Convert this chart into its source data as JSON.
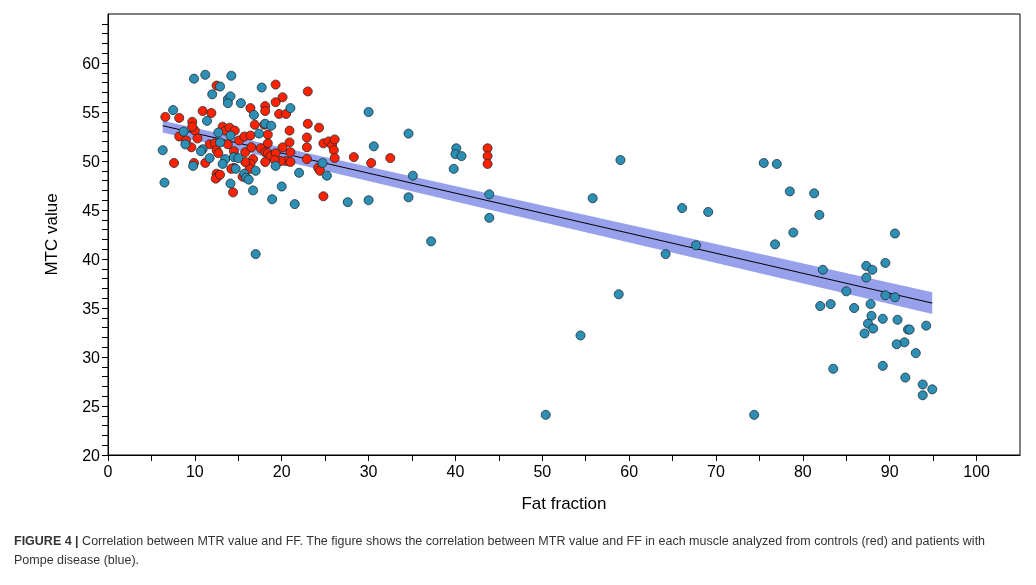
{
  "chart_data": {
    "type": "scatter",
    "xlabel": "Fat fraction",
    "ylabel": "MTC value",
    "xlim": [
      0,
      105
    ],
    "ylim": [
      20,
      65
    ],
    "xticks": [
      0,
      {
        "value": 5,
        "label": null
      },
      10,
      {
        "value": 15,
        "label": null
      },
      20,
      {
        "value": 25,
        "label": null
      },
      30,
      {
        "value": 35,
        "label": null
      },
      40,
      {
        "value": 45,
        "label": null
      },
      50,
      {
        "value": 55,
        "label": null
      },
      60,
      {
        "value": 65,
        "label": null
      },
      70,
      {
        "value": 75,
        "label": null
      },
      80,
      {
        "value": 85,
        "label": null
      },
      90,
      {
        "value": 95,
        "label": null
      },
      100
    ],
    "yticks": [
      20,
      {
        "value": 21,
        "label": null
      },
      {
        "value": 22,
        "label": null
      },
      {
        "value": 23,
        "label": null
      },
      {
        "value": 24,
        "label": null
      },
      25,
      {
        "value": 26,
        "label": null
      },
      {
        "value": 27,
        "label": null
      },
      {
        "value": 28,
        "label": null
      },
      {
        "value": 29,
        "label": null
      },
      30,
      {
        "value": 31,
        "label": null
      },
      {
        "value": 32,
        "label": null
      },
      {
        "value": 33,
        "label": null
      },
      {
        "value": 34,
        "label": null
      },
      35,
      {
        "value": 36,
        "label": null
      },
      {
        "value": 37,
        "label": null
      },
      {
        "value": 38,
        "label": null
      },
      {
        "value": 39,
        "label": null
      },
      40,
      {
        "value": 41,
        "label": null
      },
      {
        "value": 42,
        "label": null
      },
      {
        "value": 43,
        "label": null
      },
      {
        "value": 44,
        "label": null
      },
      45,
      {
        "value": 46,
        "label": null
      },
      {
        "value": 47,
        "label": null
      },
      {
        "value": 48,
        "label": null
      },
      {
        "value": 49,
        "label": null
      },
      50,
      {
        "value": 51,
        "label": null
      },
      {
        "value": 52,
        "label": null
      },
      {
        "value": 53,
        "label": null
      },
      {
        "value": 54,
        "label": null
      },
      55,
      {
        "value": 56,
        "label": null
      },
      {
        "value": 57,
        "label": null
      },
      {
        "value": 58,
        "label": null
      },
      {
        "value": 59,
        "label": null
      },
      60,
      {
        "value": 61,
        "label": null
      },
      {
        "value": 62,
        "label": null
      },
      {
        "value": 63,
        "label": null
      },
      {
        "value": 64,
        "label": null
      }
    ],
    "grid": false,
    "marker": "circle",
    "annotations": [
      "FIGURE 4 | Correlation between MTR value and FF. The figure shows the correlation between MTR value and FF in each muscle analyzed from controls (red) and patients with Pompe disease (blue)."
    ],
    "series": [
      {
        "type": "line",
        "color": "#000000",
        "marker": "none",
        "x": [
          6.3,
          94.9
        ],
        "values": [
          53.6,
          35.5
        ],
        "lower": [
          52.9,
          34.4
        ],
        "upper": [
          54.1,
          36.6
        ]
      },
      {
        "color": "#ff2200",
        "x": [
          6.6,
          8.2,
          10.9,
          11.9,
          12.5,
          16.4,
          18.1,
          19.3,
          20.1,
          19.3,
          18.1,
          19.7,
          20.5,
          23.0,
          16.9,
          18.0,
          23.0,
          24.3,
          9.7,
          10.0,
          9.7,
          8.2,
          9.0,
          10.3,
          9.6,
          7.6,
          9.9,
          11.2,
          13.2,
          13.5,
          14.0,
          14.6,
          15.1,
          15.7,
          16.4,
          18.4,
          18.4,
          20.9,
          20.9,
          22.9,
          22.9,
          22.9,
          24.2,
          24.4,
          24.8,
          24.8,
          25.4,
          25.8,
          26.1,
          26.0,
          26.1,
          28.3,
          30.3,
          32.5,
          43.7,
          43.7,
          43.7,
          11.7,
          12.3,
          12.5,
          12.7,
          13.8,
          14.5,
          15.8,
          16.5,
          17.6,
          18.1,
          18.4,
          18.7,
          19.3,
          20.1,
          20.5,
          19.9,
          19.2,
          18.1,
          16.7,
          16.4,
          16.3,
          14.5,
          14.2,
          12.5,
          12.6,
          12.4,
          12.9,
          15.5,
          14.4,
          15.8,
          21.0,
          21.0
        ],
        "values": [
          54.5,
          54.4,
          55.1,
          54.9,
          57.7,
          55.4,
          55.6,
          57.8,
          56.5,
          56.0,
          55.1,
          54.8,
          54.8,
          57.1,
          53.7,
          53.7,
          53.8,
          53.4,
          54.0,
          53.1,
          53.5,
          52.5,
          52.1,
          52.3,
          51.4,
          49.8,
          49.8,
          49.8,
          53.5,
          53.1,
          53.4,
          53.1,
          52.1,
          52.5,
          52.6,
          52.7,
          51.8,
          53.1,
          51.9,
          52.4,
          51.4,
          50.2,
          49.3,
          49.0,
          46.4,
          51.8,
          52.0,
          51.6,
          52.2,
          51.1,
          50.3,
          50.4,
          49.8,
          50.3,
          51.3,
          50.5,
          49.7,
          51.7,
          51.8,
          51.1,
          50.8,
          51.7,
          51.0,
          50.9,
          51.4,
          51.3,
          50.9,
          50.8,
          50.5,
          50.8,
          51.4,
          50.0,
          50.0,
          50.1,
          49.9,
          50.2,
          49.7,
          49.2,
          49.3,
          49.2,
          48.7,
          48.4,
          48.2,
          48.6,
          48.4,
          46.8,
          49.9,
          50.9,
          49.9
        ]
      },
      {
        "color": "#2e8fb5",
        "x": [
          9.9,
          11.2,
          14.2,
          12.9,
          12.0,
          13.8,
          14.1,
          13.8,
          15.3,
          17.7,
          21.0,
          7.5,
          11.4,
          16.8,
          8.7,
          12.7,
          14.1,
          17.4,
          18.1,
          18.8,
          12.9,
          8.9,
          6.3,
          10.9,
          10.7,
          13.5,
          14.5,
          15.0,
          11.7,
          13.2,
          9.8,
          14.7,
          17.0,
          19.3,
          22.0,
          24.7,
          25.2,
          15.7,
          15.9,
          16.2,
          14.1,
          6.5,
          16.7,
          20.0,
          18.9,
          21.5,
          27.6,
          30.0,
          30.0,
          30.6,
          17.0,
          34.6,
          40.1,
          40.0,
          40.7,
          39.8,
          35.1,
          34.6,
          37.2,
          43.9,
          43.9,
          59.0,
          55.8,
          66.1,
          67.7,
          64.2,
          58.8,
          54.4,
          50.4,
          74.4,
          75.5,
          77.0,
          78.5,
          81.3,
          69.1,
          81.9,
          78.9,
          90.6,
          76.8,
          82.3,
          87.3,
          88.0,
          89.5,
          87.3,
          85.0,
          89.5,
          90.6,
          82.0,
          83.2,
          85.9,
          87.8,
          87.9,
          89.2,
          90.9,
          87.5,
          88.1,
          87.1,
          92.1,
          92.3,
          94.2,
          91.7,
          90.8,
          93.0,
          89.2,
          83.5,
          91.8,
          93.8,
          94.9,
          93.8
        ],
        "values": [
          58.4,
          58.8,
          58.7,
          57.6,
          56.8,
          56.3,
          56.6,
          55.9,
          55.9,
          57.5,
          55.4,
          55.2,
          54.1,
          54.7,
          53.0,
          52.9,
          52.6,
          52.8,
          53.8,
          53.6,
          51.9,
          51.7,
          51.1,
          51.2,
          51.0,
          50.2,
          50.4,
          50.3,
          50.3,
          49.7,
          49.5,
          49.2,
          49.0,
          49.5,
          48.8,
          49.8,
          48.5,
          48.7,
          48.3,
          48.1,
          47.7,
          47.8,
          47.0,
          47.4,
          46.1,
          45.6,
          45.8,
          46.0,
          55.0,
          51.5,
          40.5,
          52.8,
          51.3,
          50.7,
          50.5,
          49.2,
          48.5,
          46.3,
          41.8,
          46.6,
          44.2,
          50.1,
          46.2,
          45.2,
          41.4,
          40.5,
          36.4,
          32.2,
          24.1,
          24.1,
          49.8,
          49.7,
          46.9,
          46.7,
          44.8,
          44.5,
          42.7,
          42.6,
          41.5,
          38.9,
          39.3,
          38.9,
          39.6,
          38.1,
          36.7,
          36.3,
          36.1,
          35.2,
          35.4,
          35.0,
          35.4,
          34.2,
          33.9,
          33.8,
          33.4,
          32.9,
          32.4,
          32.8,
          32.8,
          33.2,
          31.5,
          31.3,
          30.4,
          29.1,
          28.8,
          27.9,
          27.2,
          26.7,
          26.1
        ]
      }
    ]
  }
}
